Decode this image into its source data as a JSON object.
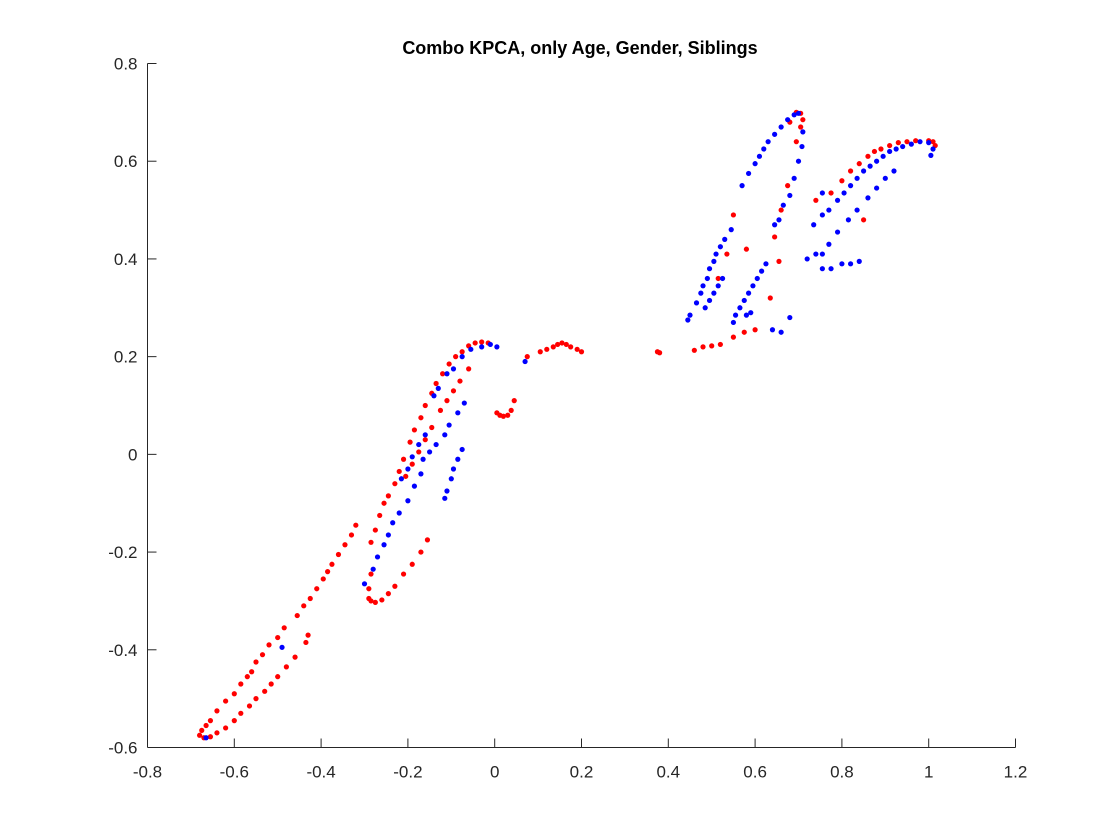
{
  "chart_data": {
    "type": "scatter",
    "title": "Combo KPCA, only Age, Gender, Siblings",
    "xlabel": "",
    "ylabel": "",
    "xlim": [
      -0.8,
      1.2
    ],
    "ylim": [
      -0.6,
      0.8
    ],
    "xticks": [
      -0.8,
      -0.6,
      -0.4,
      -0.2,
      0,
      0.2,
      0.4,
      0.6,
      0.8,
      1,
      1.2
    ],
    "xtick_labels": [
      "-0.8",
      "-0.6",
      "-0.4",
      "-0.2",
      "0",
      "0.2",
      "0.4",
      "0.6",
      "0.8",
      "1",
      "1.2"
    ],
    "yticks": [
      -0.6,
      -0.4,
      -0.2,
      0,
      0.2,
      0.4,
      0.6,
      0.8
    ],
    "ytick_labels": [
      "-0.6",
      "-0.4",
      "-0.2",
      "0",
      "0.2",
      "0.4",
      "0.6",
      "0.8"
    ],
    "grid": false,
    "series": [
      {
        "color": "#ff0000",
        "points": [
          [
            -0.68,
            -0.575
          ],
          [
            -0.675,
            -0.565
          ],
          [
            -0.665,
            -0.555
          ],
          [
            -0.655,
            -0.545
          ],
          [
            -0.64,
            -0.525
          ],
          [
            -0.62,
            -0.505
          ],
          [
            -0.6,
            -0.49
          ],
          [
            -0.585,
            -0.47
          ],
          [
            -0.57,
            -0.455
          ],
          [
            -0.56,
            -0.445
          ],
          [
            -0.55,
            -0.425
          ],
          [
            -0.535,
            -0.41
          ],
          [
            -0.52,
            -0.39
          ],
          [
            -0.5,
            -0.375
          ],
          [
            -0.485,
            -0.355
          ],
          [
            -0.455,
            -0.33
          ],
          [
            -0.44,
            -0.31
          ],
          [
            -0.425,
            -0.295
          ],
          [
            -0.41,
            -0.275
          ],
          [
            -0.395,
            -0.255
          ],
          [
            -0.385,
            -0.24
          ],
          [
            -0.375,
            -0.225
          ],
          [
            -0.36,
            -0.205
          ],
          [
            -0.345,
            -0.185
          ],
          [
            -0.33,
            -0.165
          ],
          [
            -0.32,
            -0.145
          ],
          [
            -0.67,
            -0.58
          ],
          [
            -0.655,
            -0.578
          ],
          [
            -0.64,
            -0.57
          ],
          [
            -0.62,
            -0.56
          ],
          [
            -0.6,
            -0.545
          ],
          [
            -0.585,
            -0.53
          ],
          [
            -0.565,
            -0.515
          ],
          [
            -0.55,
            -0.5
          ],
          [
            -0.53,
            -0.485
          ],
          [
            -0.515,
            -0.47
          ],
          [
            -0.5,
            -0.455
          ],
          [
            -0.48,
            -0.435
          ],
          [
            -0.46,
            -0.415
          ],
          [
            -0.435,
            -0.385
          ],
          [
            -0.43,
            -0.37
          ],
          [
            -0.285,
            -0.245
          ],
          [
            -0.29,
            -0.275
          ],
          [
            -0.29,
            -0.295
          ],
          [
            -0.285,
            -0.3
          ],
          [
            -0.275,
            -0.303
          ],
          [
            -0.26,
            -0.298
          ],
          [
            -0.245,
            -0.285
          ],
          [
            -0.23,
            -0.27
          ],
          [
            -0.21,
            -0.245
          ],
          [
            -0.19,
            -0.225
          ],
          [
            -0.17,
            -0.2
          ],
          [
            -0.155,
            -0.175
          ],
          [
            -0.285,
            -0.18
          ],
          [
            -0.275,
            -0.155
          ],
          [
            -0.265,
            -0.125
          ],
          [
            -0.255,
            -0.1
          ],
          [
            -0.245,
            -0.085
          ],
          [
            -0.23,
            -0.06
          ],
          [
            -0.22,
            -0.035
          ],
          [
            -0.21,
            -0.01
          ],
          [
            -0.195,
            0.025
          ],
          [
            -0.185,
            0.05
          ],
          [
            -0.17,
            0.075
          ],
          [
            -0.16,
            0.1
          ],
          [
            -0.145,
            0.125
          ],
          [
            -0.135,
            0.145
          ],
          [
            -0.12,
            0.165
          ],
          [
            -0.105,
            0.185
          ],
          [
            -0.09,
            0.2
          ],
          [
            -0.075,
            0.21
          ],
          [
            -0.06,
            0.222
          ],
          [
            -0.045,
            0.228
          ],
          [
            -0.03,
            0.23
          ],
          [
            -0.015,
            0.228
          ],
          [
            -0.205,
            -0.045
          ],
          [
            -0.19,
            -0.02
          ],
          [
            -0.175,
            0.005
          ],
          [
            -0.16,
            0.03
          ],
          [
            -0.145,
            0.055
          ],
          [
            -0.125,
            0.09
          ],
          [
            -0.11,
            0.11
          ],
          [
            -0.095,
            0.13
          ],
          [
            -0.08,
            0.15
          ],
          [
            -0.06,
            0.175
          ],
          [
            0.005,
            0.085
          ],
          [
            0.012,
            0.08
          ],
          [
            0.02,
            0.078
          ],
          [
            0.03,
            0.08
          ],
          [
            0.038,
            0.09
          ],
          [
            0.045,
            0.11
          ],
          [
            0.075,
            0.2
          ],
          [
            0.105,
            0.21
          ],
          [
            0.12,
            0.215
          ],
          [
            0.135,
            0.22
          ],
          [
            0.145,
            0.225
          ],
          [
            0.155,
            0.228
          ],
          [
            0.165,
            0.225
          ],
          [
            0.175,
            0.22
          ],
          [
            0.19,
            0.215
          ],
          [
            0.2,
            0.21
          ],
          [
            0.375,
            0.21
          ],
          [
            0.38,
            0.208
          ],
          [
            0.46,
            0.213
          ],
          [
            0.48,
            0.22
          ],
          [
            0.5,
            0.222
          ],
          [
            0.52,
            0.225
          ],
          [
            0.55,
            0.24
          ],
          [
            0.575,
            0.25
          ],
          [
            0.6,
            0.255
          ],
          [
            0.515,
            0.36
          ],
          [
            0.535,
            0.41
          ],
          [
            0.55,
            0.49
          ],
          [
            0.58,
            0.42
          ],
          [
            0.635,
            0.32
          ],
          [
            0.655,
            0.395
          ],
          [
            0.645,
            0.445
          ],
          [
            0.66,
            0.5
          ],
          [
            0.675,
            0.55
          ],
          [
            0.695,
            0.64
          ],
          [
            0.705,
            0.67
          ],
          [
            0.71,
            0.685
          ],
          [
            0.705,
            0.698
          ],
          [
            0.695,
            0.7
          ],
          [
            0.68,
            0.68
          ],
          [
            0.74,
            0.52
          ],
          [
            0.775,
            0.535
          ],
          [
            0.8,
            0.56
          ],
          [
            0.82,
            0.58
          ],
          [
            0.84,
            0.595
          ],
          [
            0.86,
            0.61
          ],
          [
            0.875,
            0.62
          ],
          [
            0.89,
            0.625
          ],
          [
            0.91,
            0.632
          ],
          [
            0.93,
            0.638
          ],
          [
            0.95,
            0.64
          ],
          [
            0.97,
            0.642
          ],
          [
            1.0,
            0.642
          ],
          [
            1.01,
            0.64
          ],
          [
            1.015,
            0.632
          ],
          [
            0.85,
            0.48
          ]
        ]
      },
      {
        "color": "#0000ff",
        "points": [
          [
            -0.665,
            -0.58
          ],
          [
            -0.49,
            -0.395
          ],
          [
            -0.3,
            -0.265
          ],
          [
            -0.28,
            -0.235
          ],
          [
            -0.27,
            -0.21
          ],
          [
            -0.255,
            -0.185
          ],
          [
            -0.245,
            -0.165
          ],
          [
            -0.235,
            -0.14
          ],
          [
            -0.22,
            -0.12
          ],
          [
            -0.2,
            -0.095
          ],
          [
            -0.185,
            -0.065
          ],
          [
            -0.17,
            -0.04
          ],
          [
            -0.165,
            -0.01
          ],
          [
            -0.15,
            0.005
          ],
          [
            -0.135,
            0.02
          ],
          [
            -0.115,
            0.04
          ],
          [
            -0.105,
            0.06
          ],
          [
            -0.085,
            0.085
          ],
          [
            -0.07,
            0.105
          ],
          [
            -0.215,
            -0.05
          ],
          [
            -0.2,
            -0.03
          ],
          [
            -0.19,
            -0.005
          ],
          [
            -0.175,
            0.02
          ],
          [
            -0.16,
            0.04
          ],
          [
            -0.14,
            0.12
          ],
          [
            -0.13,
            0.135
          ],
          [
            -0.11,
            0.165
          ],
          [
            -0.095,
            0.175
          ],
          [
            -0.075,
            0.2
          ],
          [
            -0.055,
            0.215
          ],
          [
            -0.115,
            -0.09
          ],
          [
            -0.11,
            -0.075
          ],
          [
            -0.1,
            -0.05
          ],
          [
            -0.095,
            -0.03
          ],
          [
            -0.085,
            -0.01
          ],
          [
            -0.075,
            0.01
          ],
          [
            -0.03,
            0.22
          ],
          [
            -0.01,
            0.225
          ],
          [
            0.005,
            0.22
          ],
          [
            0.07,
            0.19
          ],
          [
            0.445,
            0.275
          ],
          [
            0.45,
            0.285
          ],
          [
            0.465,
            0.31
          ],
          [
            0.475,
            0.33
          ],
          [
            0.48,
            0.345
          ],
          [
            0.49,
            0.36
          ],
          [
            0.495,
            0.38
          ],
          [
            0.505,
            0.395
          ],
          [
            0.51,
            0.41
          ],
          [
            0.52,
            0.425
          ],
          [
            0.53,
            0.44
          ],
          [
            0.545,
            0.46
          ],
          [
            0.485,
            0.3
          ],
          [
            0.495,
            0.315
          ],
          [
            0.505,
            0.33
          ],
          [
            0.515,
            0.345
          ],
          [
            0.525,
            0.36
          ],
          [
            0.55,
            0.27
          ],
          [
            0.555,
            0.285
          ],
          [
            0.565,
            0.3
          ],
          [
            0.575,
            0.315
          ],
          [
            0.585,
            0.33
          ],
          [
            0.595,
            0.345
          ],
          [
            0.605,
            0.36
          ],
          [
            0.615,
            0.375
          ],
          [
            0.625,
            0.39
          ],
          [
            0.58,
            0.285
          ],
          [
            0.59,
            0.29
          ],
          [
            0.64,
            0.255
          ],
          [
            0.66,
            0.25
          ],
          [
            0.68,
            0.28
          ],
          [
            0.57,
            0.55
          ],
          [
            0.585,
            0.575
          ],
          [
            0.6,
            0.595
          ],
          [
            0.61,
            0.61
          ],
          [
            0.62,
            0.625
          ],
          [
            0.63,
            0.64
          ],
          [
            0.645,
            0.655
          ],
          [
            0.66,
            0.67
          ],
          [
            0.675,
            0.685
          ],
          [
            0.69,
            0.695
          ],
          [
            0.7,
            0.698
          ],
          [
            0.645,
            0.47
          ],
          [
            0.655,
            0.48
          ],
          [
            0.665,
            0.51
          ],
          [
            0.68,
            0.53
          ],
          [
            0.69,
            0.565
          ],
          [
            0.7,
            0.6
          ],
          [
            0.708,
            0.63
          ],
          [
            0.71,
            0.66
          ],
          [
            0.735,
            0.47
          ],
          [
            0.755,
            0.49
          ],
          [
            0.77,
            0.5
          ],
          [
            0.79,
            0.52
          ],
          [
            0.805,
            0.535
          ],
          [
            0.82,
            0.55
          ],
          [
            0.835,
            0.565
          ],
          [
            0.85,
            0.58
          ],
          [
            0.865,
            0.59
          ],
          [
            0.88,
            0.6
          ],
          [
            0.895,
            0.61
          ],
          [
            0.91,
            0.62
          ],
          [
            0.925,
            0.625
          ],
          [
            0.94,
            0.63
          ],
          [
            0.96,
            0.635
          ],
          [
            0.98,
            0.64
          ],
          [
            1.0,
            0.638
          ],
          [
            1.01,
            0.625
          ],
          [
            1.005,
            0.612
          ],
          [
            0.92,
            0.58
          ],
          [
            0.9,
            0.565
          ],
          [
            0.88,
            0.545
          ],
          [
            0.86,
            0.525
          ],
          [
            0.835,
            0.5
          ],
          [
            0.815,
            0.48
          ],
          [
            0.79,
            0.455
          ],
          [
            0.77,
            0.43
          ],
          [
            0.755,
            0.41
          ],
          [
            0.72,
            0.4
          ],
          [
            0.74,
            0.41
          ],
          [
            0.755,
            0.38
          ],
          [
            0.775,
            0.38
          ],
          [
            0.8,
            0.39
          ],
          [
            0.82,
            0.39
          ],
          [
            0.84,
            0.395
          ],
          [
            0.755,
            0.535
          ]
        ]
      }
    ]
  }
}
